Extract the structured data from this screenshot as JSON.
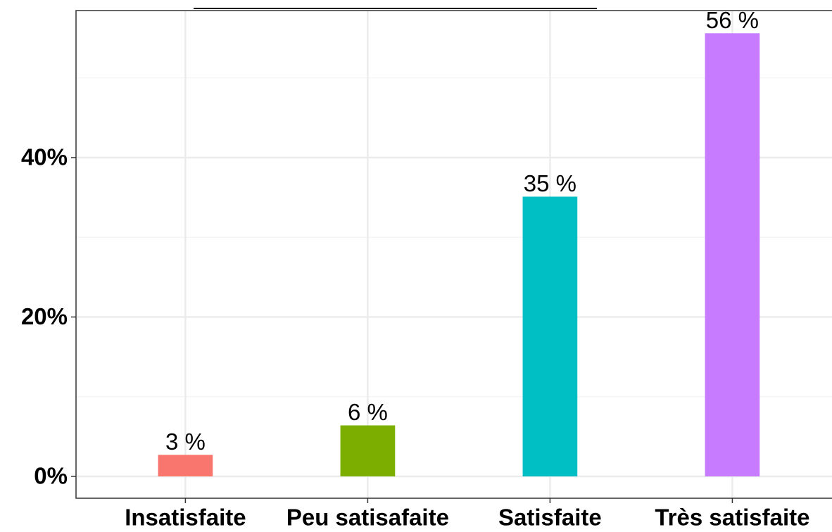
{
  "chart_data": {
    "type": "bar",
    "categories": [
      "Insatisfaite",
      "Peu satisafaite",
      "Satisfaite",
      "Très satisfaite"
    ],
    "values": [
      2.7,
      6.4,
      35.1,
      55.6
    ],
    "value_labels": [
      "3 %",
      "6 %",
      "35 %",
      "56 %"
    ],
    "colors": [
      "#F8766D",
      "#7CAE00",
      "#00BFC4",
      "#C77CFF"
    ],
    "ylim": [
      -2.74,
      58.45
    ],
    "yticks": [
      {
        "value": 0,
        "label": "0%"
      },
      {
        "value": 20,
        "label": "20%"
      },
      {
        "value": 40,
        "label": "40%"
      }
    ],
    "minor_yticks": [
      10,
      30,
      50
    ],
    "grid": true
  }
}
